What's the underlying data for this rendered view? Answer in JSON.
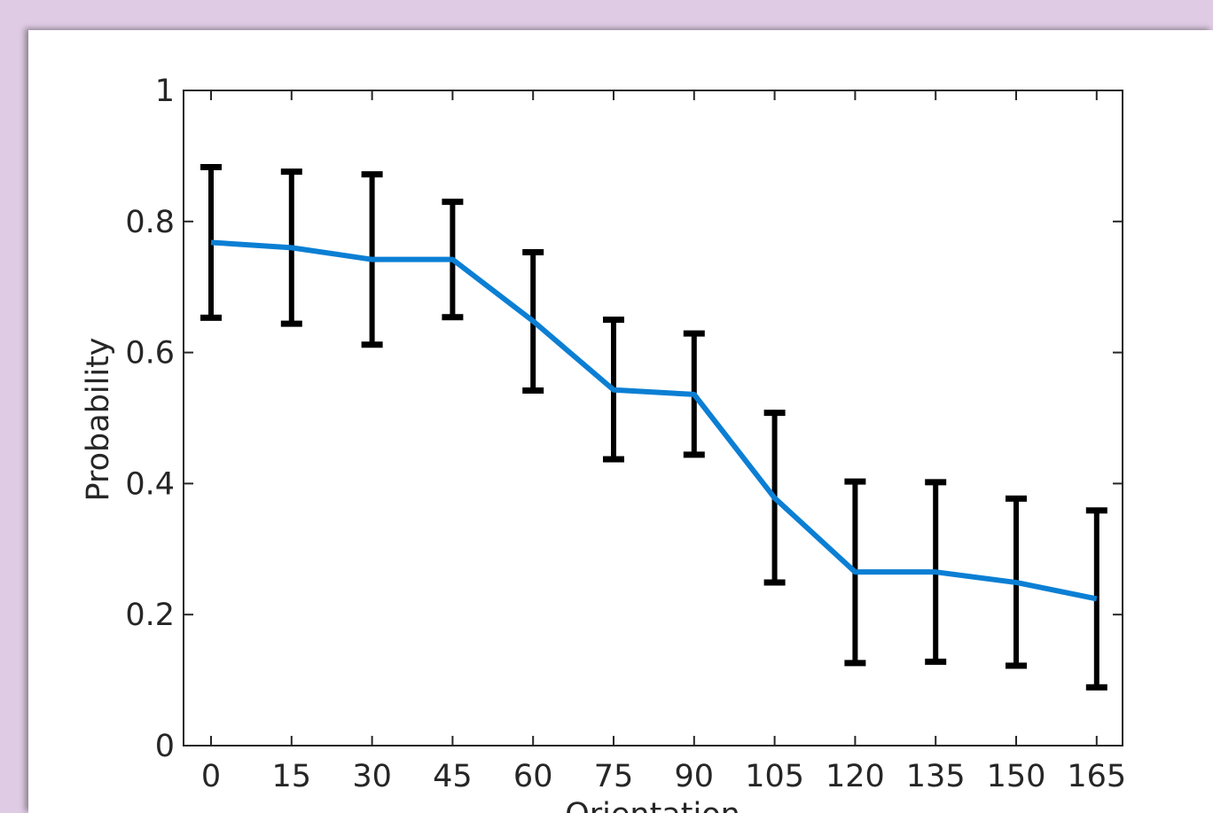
{
  "chart_data": {
    "type": "line",
    "xlabel": "Orientation",
    "ylabel": "Probability",
    "x": [
      0,
      15,
      30,
      45,
      60,
      75,
      90,
      105,
      120,
      135,
      150,
      165
    ],
    "xticks": [
      "0",
      "15",
      "30",
      "45",
      "60",
      "75",
      "90",
      "105",
      "120",
      "135",
      "150",
      "165"
    ],
    "yticks": [
      "0",
      "0.2",
      "0.4",
      "0.6",
      "0.8",
      "1"
    ],
    "ylim": [
      0,
      1
    ],
    "grid": false,
    "legend": "none",
    "series": [
      {
        "color": "#0b7fd4",
        "values": [
          0.768,
          0.76,
          0.742,
          0.742,
          0.648,
          0.543,
          0.536,
          0.378,
          0.265,
          0.265,
          0.249,
          0.224
        ],
        "err_low": [
          0.653,
          0.644,
          0.612,
          0.654,
          0.542,
          0.437,
          0.444,
          0.249,
          0.126,
          0.128,
          0.122,
          0.089
        ],
        "err_high": [
          0.883,
          0.876,
          0.872,
          0.83,
          0.753,
          0.65,
          0.629,
          0.508,
          0.403,
          0.402,
          0.377,
          0.359
        ]
      }
    ],
    "errorbar_color": "#000000"
  }
}
